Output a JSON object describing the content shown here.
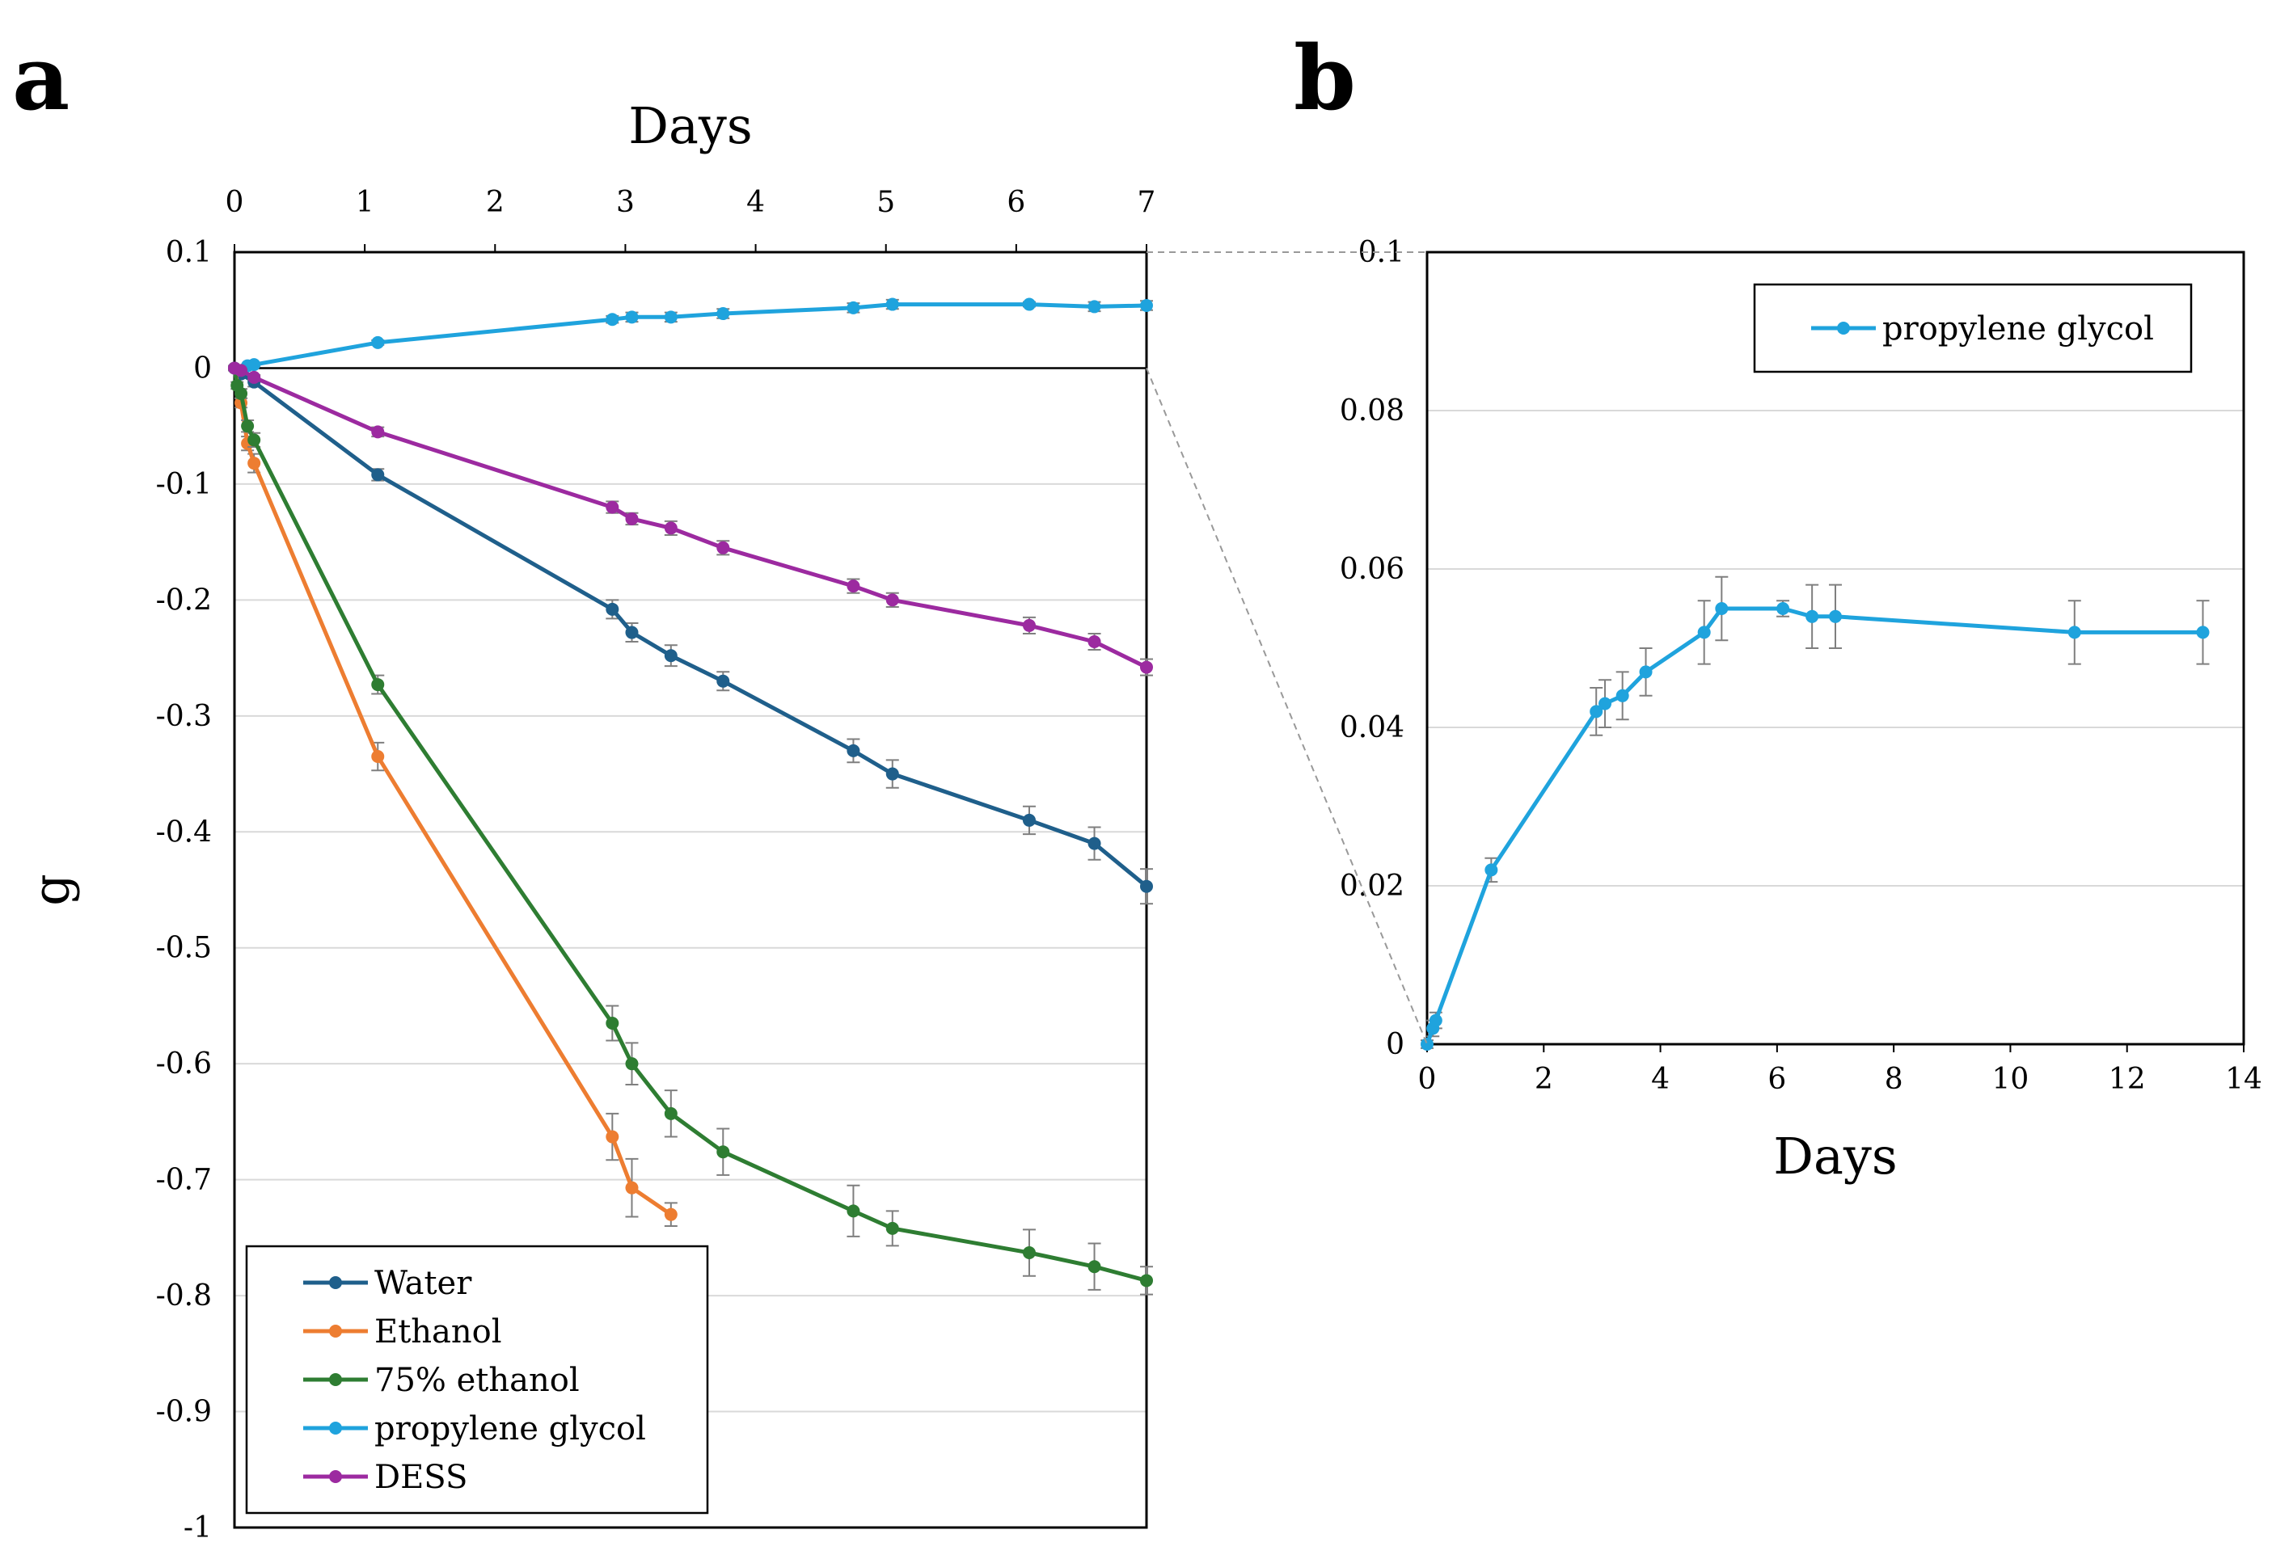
{
  "chart_data": [
    {
      "panel": "a",
      "type": "line",
      "title": "",
      "xlabel": "Days",
      "ylabel": "g",
      "xlim": [
        0,
        7
      ],
      "ylim": [
        -1,
        0.1
      ],
      "x_ticks": [
        "0",
        "1",
        "2",
        "3",
        "4",
        "5",
        "6",
        "7"
      ],
      "y_ticks": [
        "0.1",
        "0",
        "-0.1",
        "-0.2",
        "-0.3",
        "-0.4",
        "-0.5",
        "-0.6",
        "-0.7",
        "-0.8",
        "-0.9",
        "-1"
      ],
      "grid": "horizontal",
      "x_axis_position": "top",
      "legend_position": "bottom-left",
      "series": [
        {
          "name": "Water",
          "color": "#1f5f8b",
          "x": [
            0,
            0.05,
            0.15,
            1.1,
            2.9,
            3.05,
            3.35,
            3.75,
            4.75,
            5.05,
            6.1,
            6.6,
            7.0
          ],
          "y": [
            0,
            -0.005,
            -0.012,
            -0.092,
            -0.208,
            -0.228,
            -0.248,
            -0.27,
            -0.33,
            -0.35,
            -0.39,
            -0.41,
            -0.447
          ],
          "err": [
            0.002,
            0.003,
            0.004,
            0.005,
            0.008,
            0.008,
            0.009,
            0.008,
            0.01,
            0.012,
            0.012,
            0.014,
            0.015
          ]
        },
        {
          "name": "Ethanol",
          "color": "#ed7d31",
          "x": [
            0,
            0.05,
            0.1,
            0.15,
            1.1,
            2.9,
            3.05,
            3.35
          ],
          "y": [
            0,
            -0.03,
            -0.065,
            -0.082,
            -0.335,
            -0.663,
            -0.707,
            -0.73
          ],
          "err": [
            0.002,
            0.004,
            0.006,
            0.008,
            0.012,
            0.02,
            0.025,
            0.01
          ]
        },
        {
          "name": "75% ethanol",
          "color": "#2e7d32",
          "x": [
            0,
            0.02,
            0.05,
            0.1,
            0.15,
            1.1,
            2.9,
            3.05,
            3.35,
            3.75,
            4.75,
            5.05,
            6.1,
            6.6,
            7.0
          ],
          "y": [
            0,
            -0.015,
            -0.022,
            -0.05,
            -0.062,
            -0.273,
            -0.565,
            -0.6,
            -0.643,
            -0.676,
            -0.727,
            -0.742,
            -0.763,
            -0.775,
            -0.787
          ],
          "err": [
            0.002,
            0.003,
            0.004,
            0.005,
            0.006,
            0.008,
            0.015,
            0.018,
            0.02,
            0.02,
            0.022,
            0.015,
            0.02,
            0.02,
            0.012
          ]
        },
        {
          "name": "propylene glycol",
          "color": "#1fa3dd",
          "x": [
            0,
            0.1,
            0.15,
            1.1,
            2.9,
            3.05,
            3.35,
            3.75,
            4.75,
            5.05,
            6.1,
            6.6,
            7.0
          ],
          "y": [
            0,
            0.002,
            0.003,
            0.022,
            0.042,
            0.044,
            0.044,
            0.047,
            0.052,
            0.055,
            0.055,
            0.053,
            0.054
          ],
          "err": [
            0.001,
            0.001,
            0.001,
            0.002,
            0.003,
            0.004,
            0.004,
            0.004,
            0.004,
            0.004,
            0.002,
            0.004,
            0.004
          ]
        },
        {
          "name": "DESS",
          "color": "#9c2aa0",
          "x": [
            0,
            0.05,
            0.15,
            1.1,
            2.9,
            3.05,
            3.35,
            3.75,
            4.75,
            5.05,
            6.1,
            6.6,
            7.0
          ],
          "y": [
            0,
            -0.002,
            -0.008,
            -0.055,
            -0.12,
            -0.13,
            -0.138,
            -0.155,
            -0.188,
            -0.2,
            -0.222,
            -0.236,
            -0.258
          ],
          "err": [
            0.001,
            0.001,
            0.002,
            0.004,
            0.005,
            0.005,
            0.006,
            0.006,
            0.006,
            0.006,
            0.007,
            0.007,
            0.007
          ]
        }
      ]
    },
    {
      "panel": "b",
      "type": "line",
      "title": "",
      "xlabel": "Days",
      "ylabel": "",
      "xlim": [
        0,
        14
      ],
      "ylim": [
        0,
        0.1
      ],
      "x_ticks": [
        "0",
        "2",
        "4",
        "6",
        "8",
        "10",
        "12",
        "14"
      ],
      "y_ticks": [
        "0",
        "0.02",
        "0.04",
        "0.06",
        "0.08",
        "0.1"
      ],
      "grid": "horizontal",
      "legend_position": "top-right",
      "series": [
        {
          "name": "propylene glycol",
          "color": "#1fa3dd",
          "x": [
            0,
            0.1,
            0.15,
            1.1,
            2.9,
            3.05,
            3.35,
            3.75,
            4.75,
            5.05,
            6.1,
            6.6,
            7.0,
            11.1,
            13.3
          ],
          "y": [
            0,
            0.002,
            0.003,
            0.022,
            0.042,
            0.043,
            0.044,
            0.047,
            0.052,
            0.055,
            0.055,
            0.054,
            0.054,
            0.052,
            0.052
          ],
          "err": [
            0.0005,
            0.001,
            0.001,
            0.0015,
            0.003,
            0.003,
            0.003,
            0.003,
            0.004,
            0.004,
            0.001,
            0.004,
            0.004,
            0.004,
            0.004
          ]
        }
      ]
    }
  ]
}
